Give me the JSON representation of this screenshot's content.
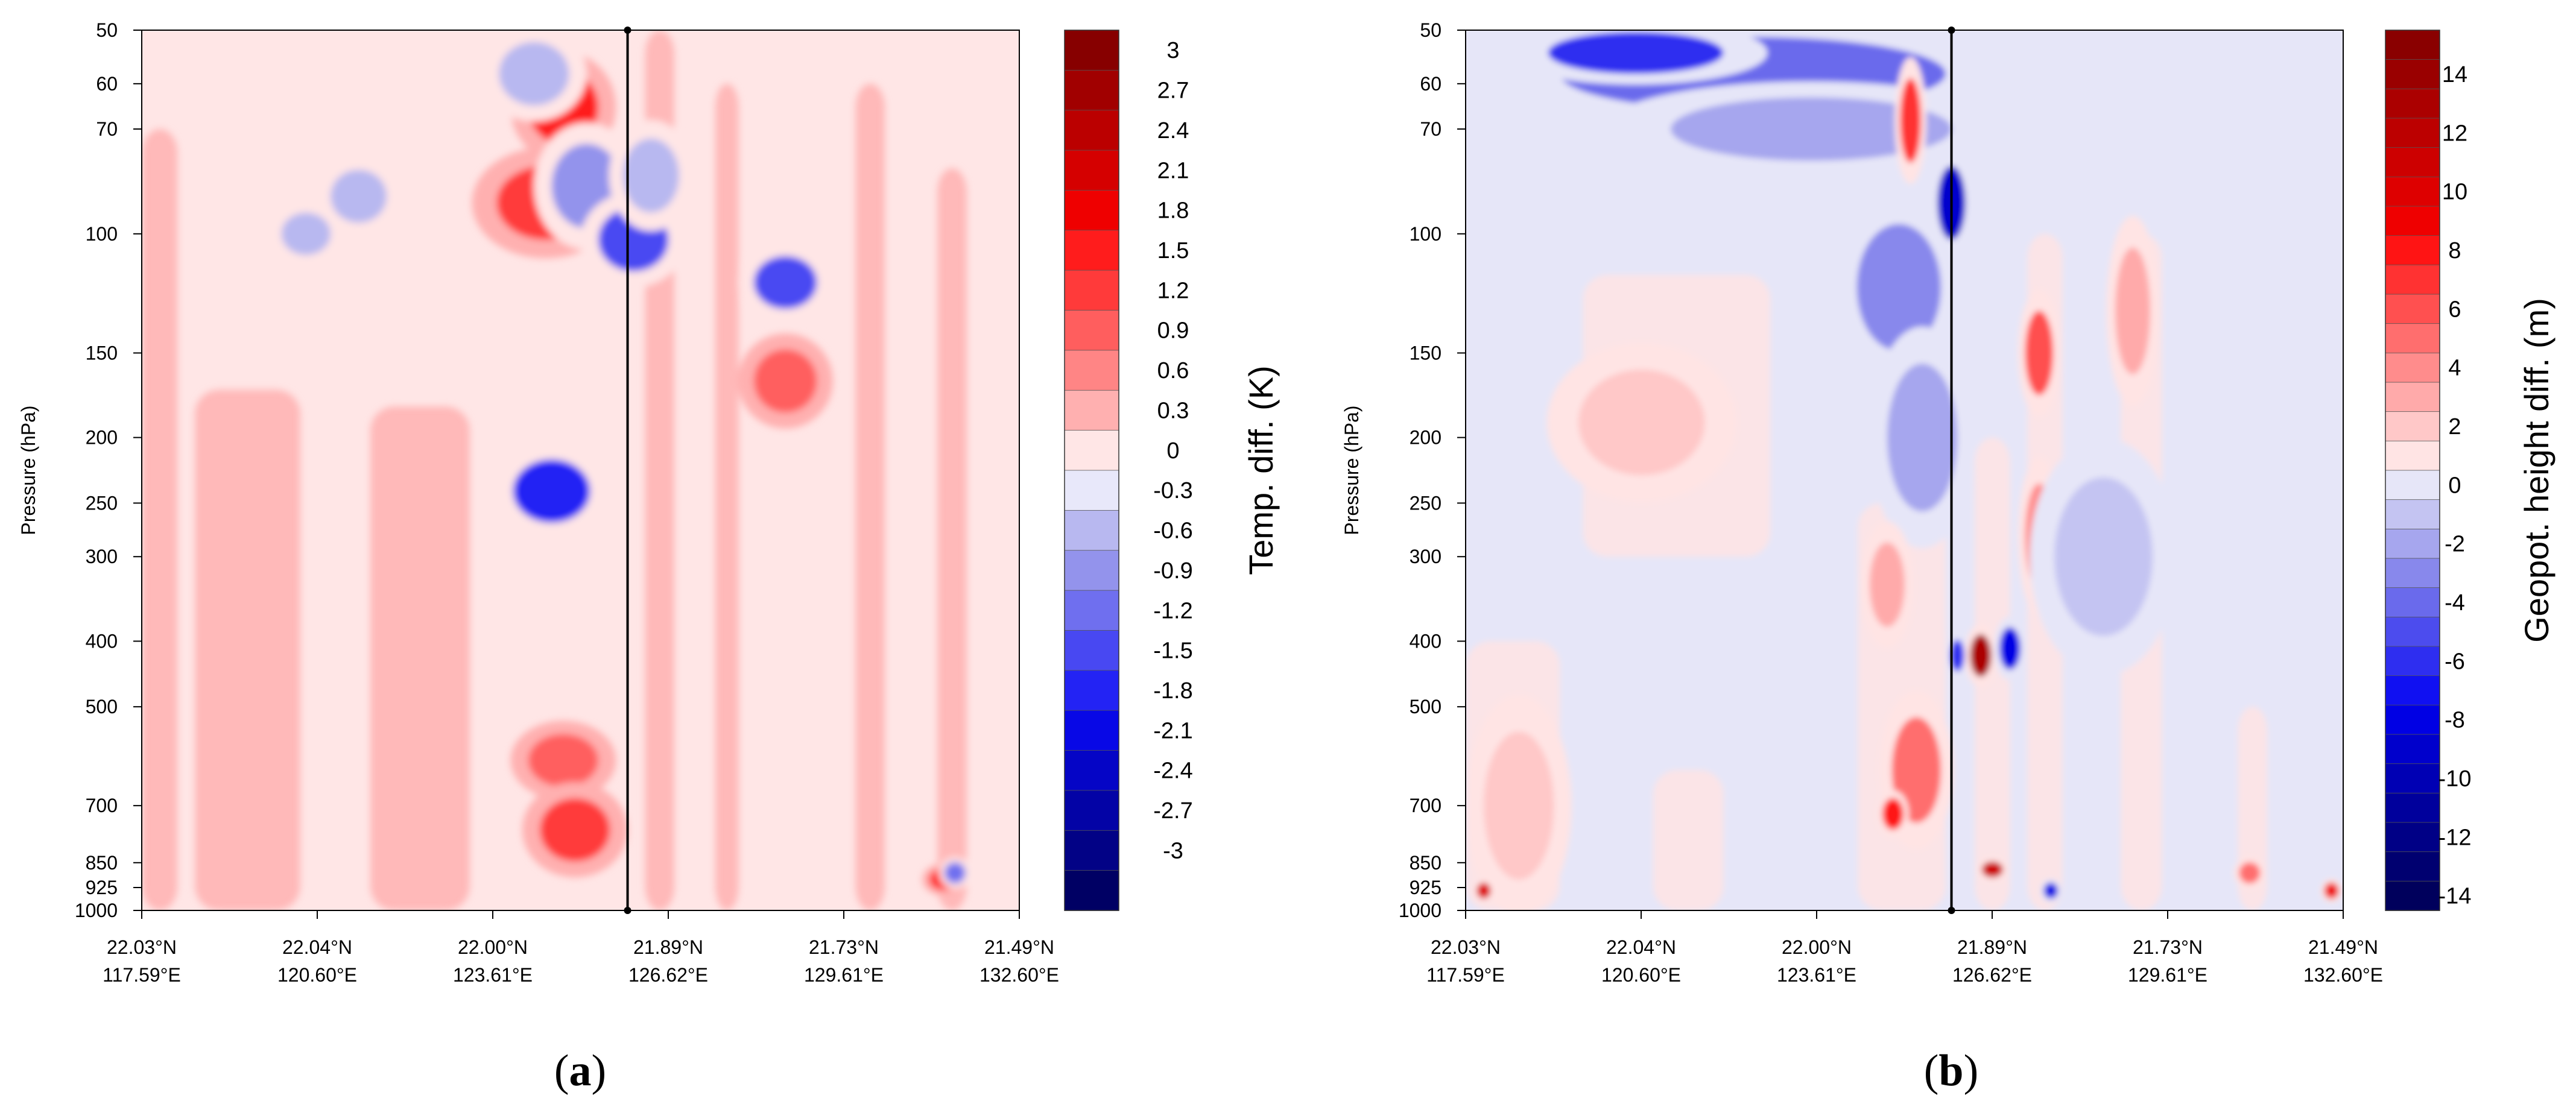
{
  "chart_data": [
    {
      "type": "heatmap",
      "subplot_label": "a",
      "ylabel": "Pressure (hPa)",
      "yaxis_scale": "log",
      "ylim": [
        1000,
        50
      ],
      "y_ticks": [
        50,
        60,
        70,
        100,
        150,
        200,
        250,
        300,
        400,
        500,
        700,
        850,
        925,
        1000
      ],
      "x_ticks": [
        {
          "lat": "22.03°N",
          "lon": "117.59°E"
        },
        {
          "lat": "22.04°N",
          "lon": "120.60°E"
        },
        {
          "lat": "22.00°N",
          "lon": "123.61°E"
        },
        {
          "lat": "21.89°N",
          "lon": "126.62°E"
        },
        {
          "lat": "21.73°N",
          "lon": "129.61°E"
        },
        {
          "lat": "21.49°N",
          "lon": "132.60°E"
        }
      ],
      "xlim": [
        117.59,
        132.6
      ],
      "marker_line_lon": 125.9,
      "colorbar": {
        "title": "Temp. diff. (K)",
        "levels": [
          3,
          2.7,
          2.4,
          2.1,
          1.8,
          1.5,
          1.2,
          0.9,
          0.6,
          0.3,
          0,
          -0.3,
          -0.6,
          -0.9,
          -1.2,
          -1.5,
          -1.8,
          -2.1,
          -2.4,
          -2.7,
          -3
        ],
        "labels": [
          "3",
          "2.7",
          "2.4",
          "2.1",
          "1.8",
          "1.5",
          "1.2",
          "0.9",
          "0.6",
          "0.3",
          "0",
          "-0.3",
          "-0.6",
          "-0.9",
          "-1.2",
          "-1.5",
          "-1.8",
          "-2.1",
          "-2.4",
          "-2.7",
          "-3"
        ],
        "colors": [
          "#870000",
          "#a10000",
          "#bb0000",
          "#d50000",
          "#ef0000",
          "#ff1c1c",
          "#ff3a3a",
          "#ff5e5e",
          "#ff8585",
          "#ffb0b0",
          "#ffe6e6",
          "#e8e8fa",
          "#b8b8f0",
          "#9393ec",
          "#6f6fef",
          "#4848f2",
          "#2323f4",
          "#0808e6",
          "#0505c6",
          "#0303a6",
          "#020286",
          "#000064"
        ]
      },
      "features": [
        {
          "lon": 124.8,
          "p": 65,
          "v": 1.5,
          "rx": 0.1,
          "ry": 0.07
        },
        {
          "lon": 124.5,
          "p": 90,
          "v": 1.2,
          "rx": 0.14,
          "ry": 0.07
        },
        {
          "lon": 125.2,
          "p": 85,
          "v": -0.9,
          "rx": 0.1,
          "ry": 0.08
        },
        {
          "lon": 124.3,
          "p": 58,
          "v": -0.6,
          "rx": 0.1,
          "ry": 0.06
        },
        {
          "lon": 126.0,
          "p": 102,
          "v": -1.5,
          "rx": 0.1,
          "ry": 0.06
        },
        {
          "lon": 126.3,
          "p": 82,
          "v": -0.6,
          "rx": 0.08,
          "ry": 0.07
        },
        {
          "lon": 128.6,
          "p": 118,
          "v": -1.5,
          "rx": 0.09,
          "ry": 0.05
        },
        {
          "lon": 128.6,
          "p": 165,
          "v": 0.9,
          "rx": 0.09,
          "ry": 0.06
        },
        {
          "lon": 124.6,
          "p": 240,
          "v": -1.8,
          "rx": 0.11,
          "ry": 0.06
        },
        {
          "lon": 124.8,
          "p": 600,
          "v": 0.9,
          "rx": 0.1,
          "ry": 0.05
        },
        {
          "lon": 125.0,
          "p": 760,
          "v": 1.2,
          "rx": 0.1,
          "ry": 0.06
        },
        {
          "lon": 121.3,
          "p": 88,
          "v": -0.6,
          "rx": 0.08,
          "ry": 0.05
        },
        {
          "lon": 120.4,
          "p": 100,
          "v": -0.6,
          "rx": 0.07,
          "ry": 0.04
        },
        {
          "lon": 131.3,
          "p": 900,
          "v": 1.5,
          "rx": 0.04,
          "ry": 0.02
        },
        {
          "lon": 131.5,
          "p": 880,
          "v": -1.2,
          "rx": 0.03,
          "ry": 0.02
        }
      ]
    },
    {
      "type": "heatmap",
      "subplot_label": "b",
      "ylabel": "Pressure (hPa)",
      "yaxis_scale": "log",
      "ylim": [
        1000,
        50
      ],
      "y_ticks": [
        50,
        60,
        70,
        100,
        150,
        200,
        250,
        300,
        400,
        500,
        700,
        850,
        925,
        1000
      ],
      "x_ticks": [
        {
          "lat": "22.03°N",
          "lon": "117.59°E"
        },
        {
          "lat": "22.04°N",
          "lon": "120.60°E"
        },
        {
          "lat": "22.00°N",
          "lon": "123.61°E"
        },
        {
          "lat": "21.89°N",
          "lon": "126.62°E"
        },
        {
          "lat": "21.73°N",
          "lon": "129.61°E"
        },
        {
          "lat": "21.49°N",
          "lon": "132.60°E"
        }
      ],
      "xlim": [
        117.59,
        132.6
      ],
      "marker_line_lon": 125.9,
      "colorbar": {
        "title": "Geopot. height diff. (m)",
        "levels": [
          15,
          14,
          13,
          12,
          11,
          10,
          9,
          8,
          7,
          6,
          5,
          4,
          3,
          2,
          1,
          0,
          -1,
          -2,
          -3,
          -4,
          -5,
          -6,
          -7,
          -8,
          -9,
          -10,
          -11,
          -12,
          -13,
          -14,
          -15
        ],
        "labels": [
          "14",
          "12",
          "10",
          "8",
          "6",
          "4",
          "2",
          "0",
          "-2",
          "-4",
          "-6",
          "-8",
          "-10",
          "-12",
          "-14"
        ],
        "colors": [
          "#8a0000",
          "#9a0000",
          "#ab0000",
          "#bc0000",
          "#cd0000",
          "#de0000",
          "#ef0000",
          "#ff1414",
          "#ff3232",
          "#ff5050",
          "#ff6e6e",
          "#ff8c8c",
          "#ffaaaa",
          "#ffc8c8",
          "#ffe4e4",
          "#e6e6f8",
          "#c4c4f2",
          "#a6a6ee",
          "#8888ec",
          "#6a6aec",
          "#4c4cee",
          "#2e2ef0",
          "#1010f2",
          "#0000e4",
          "#0000cc",
          "#0000b4",
          "#00009c",
          "#000086",
          "#000070",
          "#00005c"
        ]
      },
      "features": [
        {
          "lon": 122.5,
          "p": 58,
          "v": -4.5,
          "rx": 0.55,
          "ry": 0.07
        },
        {
          "lon": 120.5,
          "p": 54,
          "v": -6.5,
          "rx": 0.25,
          "ry": 0.04
        },
        {
          "lon": 123.5,
          "p": 70,
          "v": -2.5,
          "rx": 0.4,
          "ry": 0.06
        },
        {
          "lon": 125.0,
          "p": 120,
          "v": -3.5,
          "rx": 0.12,
          "ry": 0.12
        },
        {
          "lon": 125.4,
          "p": 200,
          "v": -2.5,
          "rx": 0.1,
          "ry": 0.14
        },
        {
          "lon": 120.6,
          "p": 190,
          "v": 1.5,
          "rx": 0.18,
          "ry": 0.1
        },
        {
          "lon": 125.2,
          "p": 68,
          "v": 6.5,
          "rx": 0.03,
          "ry": 0.08
        },
        {
          "lon": 125.9,
          "p": 90,
          "v": -9.5,
          "rx": 0.04,
          "ry": 0.07
        },
        {
          "lon": 124.8,
          "p": 330,
          "v": 2.5,
          "rx": 0.05,
          "ry": 0.08
        },
        {
          "lon": 125.3,
          "p": 620,
          "v": 4.5,
          "rx": 0.07,
          "ry": 0.1
        },
        {
          "lon": 126.0,
          "p": 420,
          "v": -6.5,
          "rx": 0.02,
          "ry": 0.03
        },
        {
          "lon": 126.4,
          "p": 420,
          "v": 12.5,
          "rx": 0.03,
          "ry": 0.04
        },
        {
          "lon": 126.9,
          "p": 410,
          "v": -8.5,
          "rx": 0.03,
          "ry": 0.04
        },
        {
          "lon": 127.4,
          "p": 150,
          "v": 5.5,
          "rx": 0.04,
          "ry": 0.08
        },
        {
          "lon": 127.4,
          "p": 280,
          "v": 3.5,
          "rx": 0.04,
          "ry": 0.1
        },
        {
          "lon": 129.0,
          "p": 130,
          "v": 2.5,
          "rx": 0.05,
          "ry": 0.12
        },
        {
          "lon": 128.5,
          "p": 300,
          "v": -1.5,
          "rx": 0.14,
          "ry": 0.15
        },
        {
          "lon": 118.5,
          "p": 700,
          "v": 1.5,
          "rx": 0.1,
          "ry": 0.14
        },
        {
          "lon": 124.9,
          "p": 720,
          "v": 7.5,
          "rx": 0.03,
          "ry": 0.03
        },
        {
          "lon": 126.6,
          "p": 870,
          "v": 10.5,
          "rx": 0.03,
          "ry": 0.015
        },
        {
          "lon": 131.0,
          "p": 880,
          "v": 4.5,
          "rx": 0.03,
          "ry": 0.02
        },
        {
          "lon": 117.9,
          "p": 935,
          "v": 9.5,
          "rx": 0.02,
          "ry": 0.015
        },
        {
          "lon": 132.4,
          "p": 935,
          "v": 8.5,
          "rx": 0.02,
          "ry": 0.015
        },
        {
          "lon": 127.6,
          "p": 935,
          "v": -8.5,
          "rx": 0.02,
          "ry": 0.015
        }
      ]
    }
  ]
}
